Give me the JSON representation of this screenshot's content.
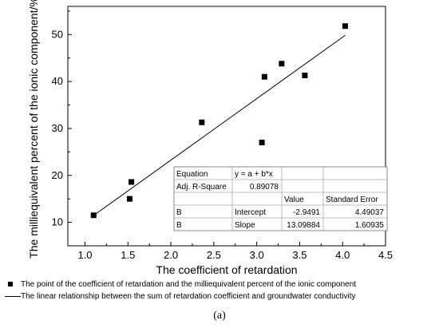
{
  "chart_data": {
    "type": "scatter",
    "xlabel": "The coefficient of retardation",
    "ylabel": "The milliequivalent percent of the ionic component/%",
    "xlim": [
      0.8,
      4.5
    ],
    "ylim": [
      5,
      56
    ],
    "xticks": [
      "1.0",
      "1.5",
      "2.0",
      "2.5",
      "3.0",
      "3.5",
      "4.0",
      "4.5"
    ],
    "yticks": [
      "10",
      "20",
      "30",
      "40",
      "50"
    ],
    "points": [
      {
        "x": 1.1,
        "y": 11.5
      },
      {
        "x": 1.52,
        "y": 15.0
      },
      {
        "x": 1.54,
        "y": 18.6
      },
      {
        "x": 2.36,
        "y": 31.3
      },
      {
        "x": 3.06,
        "y": 27.0
      },
      {
        "x": 3.09,
        "y": 41.0
      },
      {
        "x": 3.29,
        "y": 43.8
      },
      {
        "x": 3.56,
        "y": 41.3
      },
      {
        "x": 4.03,
        "y": 51.8
      }
    ],
    "fit": {
      "intercept": -2.9491,
      "slope": 13.09884,
      "x_range": [
        1.1,
        4.03
      ]
    },
    "grid": false,
    "legend": {
      "placement": "bottom",
      "entries": [
        "The point of the coefficient of retardation and the milliequivalent percent of the ionic component",
        "The linear relationship between the sum of retardation coefficient and groundwater conductivity"
      ]
    },
    "stats_table": {
      "rows": [
        [
          "Equation",
          "y = a + b*x",
          "",
          ""
        ],
        [
          "Adj. R-Square",
          "0.89078",
          "",
          ""
        ],
        [
          "",
          "",
          "Value",
          "Standard Error"
        ],
        [
          "B",
          "Intercept",
          "-2.9491",
          "4.49037"
        ],
        [
          "B",
          "Slope",
          "13.09884",
          "1.60935"
        ]
      ]
    }
  },
  "caption": "(a)"
}
